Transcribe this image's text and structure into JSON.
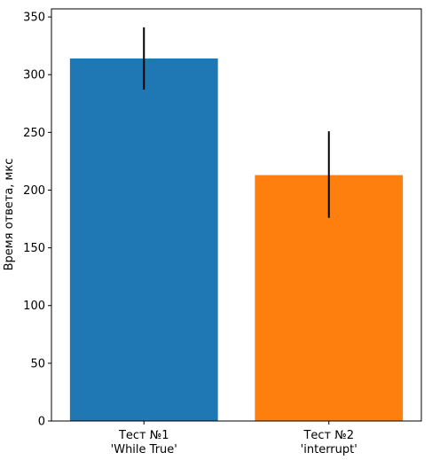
{
  "chart_data": {
    "type": "bar",
    "title": "",
    "xlabel": "",
    "ylabel": "Время ответа, мкс",
    "ylim": [
      0,
      357
    ],
    "yticks": [
      0,
      50,
      100,
      150,
      200,
      250,
      300,
      350
    ],
    "grid": false,
    "categories": [
      [
        "Тест №1",
        "'While True'"
      ],
      [
        "Тест №2",
        "'interrupt'"
      ]
    ],
    "values": [
      314,
      213
    ],
    "error_low": [
      287,
      176
    ],
    "error_high": [
      341,
      251
    ],
    "colors": [
      "#1f77b4",
      "#ff7f0e"
    ],
    "error_color": "#000000"
  }
}
